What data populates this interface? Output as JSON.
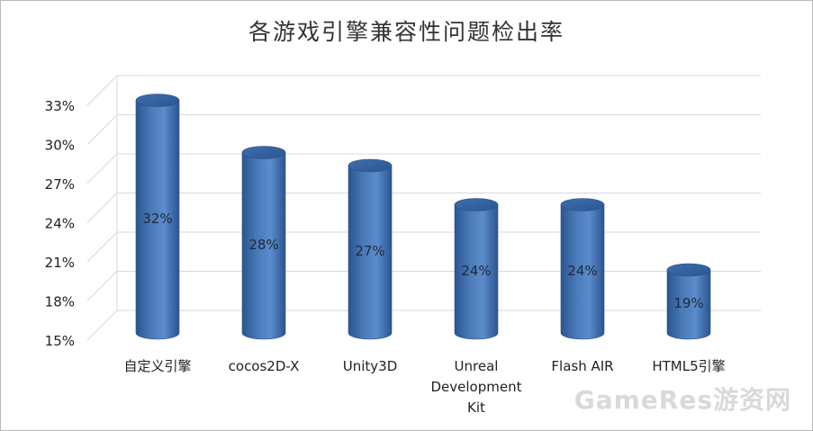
{
  "chart_data": {
    "type": "bar",
    "title": "各游戏引擎兼容性问题检出率",
    "categories": [
      "自定义引擎",
      "cocos2D-X",
      "Unity3D",
      "Unreal Development Kit",
      "Flash AIR",
      "HTML5引擎"
    ],
    "category_lines": [
      [
        "自定义引擎"
      ],
      [
        "cocos2D-X"
      ],
      [
        "Unity3D"
      ],
      [
        "Unreal",
        "Development",
        "Kit"
      ],
      [
        "Flash AIR"
      ],
      [
        "HTML5引擎"
      ]
    ],
    "values": [
      32,
      28,
      27,
      24,
      24,
      19
    ],
    "value_labels": [
      "32%",
      "28%",
      "27%",
      "24%",
      "24%",
      "19%"
    ],
    "yticks": [
      "15%",
      "18%",
      "21%",
      "24%",
      "27%",
      "30%",
      "33%"
    ],
    "ylim": [
      15,
      33
    ],
    "grid": true,
    "style": "3d-cylinder",
    "colors": {
      "bar": "#4a7ab8",
      "bar_dark": "#2b5590",
      "bar_light": "#8db3e2",
      "grid": "#d9d9d9"
    }
  },
  "watermark": "GameRes游资网"
}
